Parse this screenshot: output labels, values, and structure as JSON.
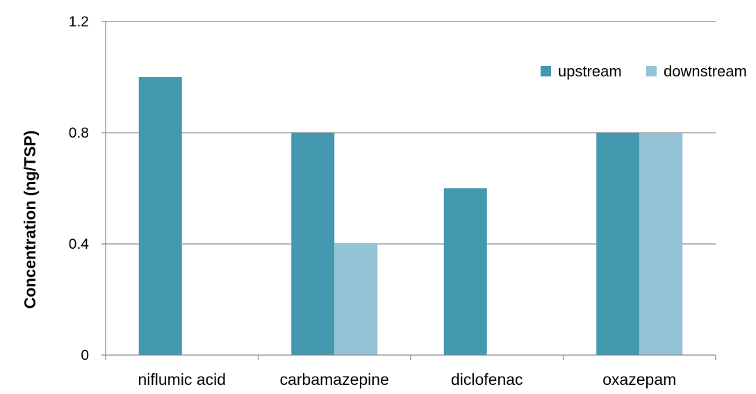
{
  "chart_data": {
    "type": "bar",
    "title": "",
    "xlabel": "",
    "ylabel": "Concentration (ng/TSP)",
    "ylim": [
      0,
      1.2
    ],
    "yticks": [
      "0",
      "0.4",
      "0.8",
      "1.2"
    ],
    "ytick_values": [
      0,
      0.4,
      0.8,
      1.2
    ],
    "categories": [
      "niflumic acid",
      "carbamazepine",
      "diclofenac",
      "oxazepam"
    ],
    "grid": true,
    "legend": "top-right",
    "series": [
      {
        "name": "upstream",
        "color": "#4499b0",
        "values": [
          1.0,
          0.8,
          0.6,
          0.8
        ]
      },
      {
        "name": "downstream",
        "color": "#93c3d5",
        "values": [
          0,
          0.4,
          0,
          0.8
        ]
      }
    ]
  }
}
